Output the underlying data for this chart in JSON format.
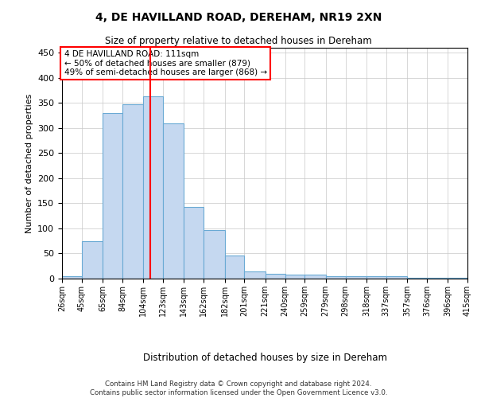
{
  "title": "4, DE HAVILLAND ROAD, DEREHAM, NR19 2XN",
  "subtitle": "Size of property relative to detached houses in Dereham",
  "xlabel": "Distribution of detached houses by size in Dereham",
  "ylabel": "Number of detached properties",
  "bar_color": "#c5d8f0",
  "bar_edge_color": "#6aaad4",
  "background_color": "#ffffff",
  "grid_color": "#c8c8c8",
  "vline_x": 111,
  "vline_color": "red",
  "annotation_text": "4 DE HAVILLAND ROAD: 111sqm\n← 50% of detached houses are smaller (879)\n49% of semi-detached houses are larger (868) →",
  "annotation_box_color": "white",
  "annotation_box_edge_color": "red",
  "footer_text": "Contains HM Land Registry data © Crown copyright and database right 2024.\nContains public sector information licensed under the Open Government Licence v3.0.",
  "bin_edges": [
    26,
    45,
    65,
    84,
    104,
    123,
    143,
    162,
    182,
    201,
    221,
    240,
    259,
    279,
    298,
    318,
    337,
    357,
    376,
    396,
    415
  ],
  "bar_heights": [
    5,
    75,
    330,
    348,
    363,
    310,
    142,
    97,
    46,
    15,
    10,
    8,
    8,
    5,
    5,
    4,
    4,
    2,
    1,
    1
  ],
  "tick_labels": [
    "26sqm",
    "45sqm",
    "65sqm",
    "84sqm",
    "104sqm",
    "123sqm",
    "143sqm",
    "162sqm",
    "182sqm",
    "201sqm",
    "221sqm",
    "240sqm",
    "259sqm",
    "279sqm",
    "298sqm",
    "318sqm",
    "337sqm",
    "357sqm",
    "376sqm",
    "396sqm",
    "415sqm"
  ],
  "ylim": [
    0,
    460
  ],
  "yticks": [
    0,
    50,
    100,
    150,
    200,
    250,
    300,
    350,
    400,
    450
  ]
}
